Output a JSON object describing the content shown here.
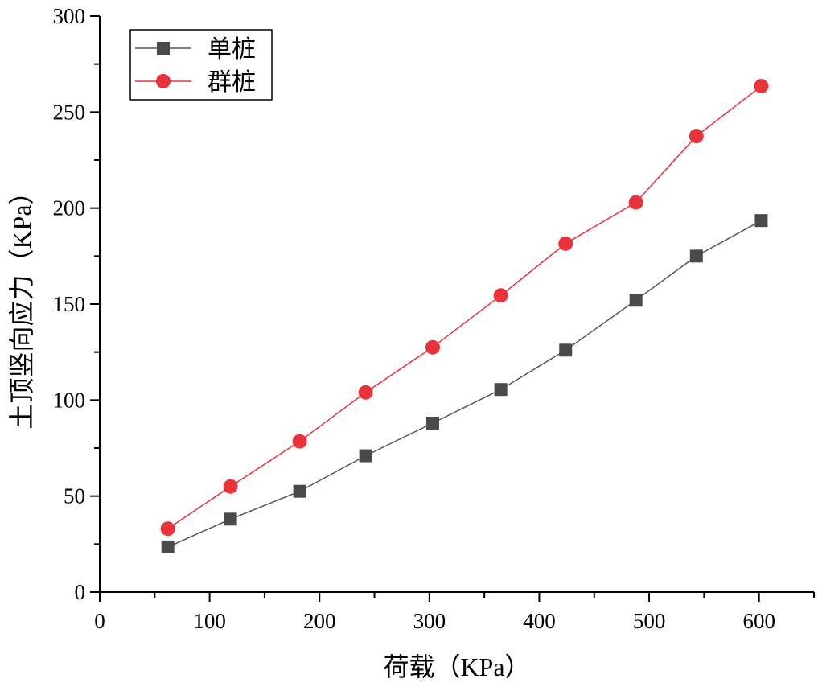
{
  "chart_data": {
    "type": "line",
    "xlabel": "荷载（KPa）",
    "ylabel": "土顶竖向应力（KPa）",
    "xlim": [
      0,
      650
    ],
    "ylim": [
      0,
      300
    ],
    "xticks": [
      0,
      100,
      200,
      300,
      400,
      500,
      600
    ],
    "yticks": [
      0,
      50,
      100,
      150,
      200,
      250,
      300
    ],
    "xtick_labels": [
      "0",
      "100",
      "200",
      "300",
      "400",
      "500",
      "600"
    ],
    "ytick_labels": [
      "0",
      "50",
      "100",
      "150",
      "200",
      "250",
      "300"
    ],
    "legend_position": "top-left",
    "grid": false,
    "series": [
      {
        "name": "单桩",
        "marker": "square",
        "color": "#4a4a4a",
        "line_color": "#555555",
        "x": [
          62,
          119,
          182,
          242,
          303,
          365,
          424,
          488,
          543,
          602
        ],
        "y": [
          23.5,
          38,
          52.5,
          71,
          88,
          105.5,
          126,
          152,
          175,
          193.5
        ]
      },
      {
        "name": "群桩",
        "marker": "circle",
        "color": "#e8333a",
        "line_color": "#e8333a",
        "x": [
          62,
          119,
          182,
          242,
          303,
          365,
          424,
          488,
          543,
          602
        ],
        "y": [
          33,
          55,
          78.5,
          104,
          127.5,
          154.5,
          181.5,
          203,
          237.5,
          263.5
        ]
      }
    ]
  }
}
